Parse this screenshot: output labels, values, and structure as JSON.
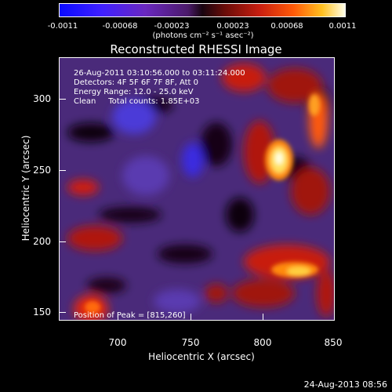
{
  "colorbar": {
    "ticks": [
      "-0.0011",
      "-0.00068",
      "-0.00023",
      "0.00023",
      "0.00068",
      "0.0011"
    ],
    "unit": "(photons cm⁻² s⁻¹ asec⁻²)"
  },
  "title": "Reconstructed RHESSI Image",
  "info": {
    "time": "26-Aug-2011 03:10:56.000 to 03:11:24.000",
    "detectors": "Detectors: 4F 5F 6F 7F 8F, Att 0",
    "energy": "Energy Range: 12.0 - 25.0 keV",
    "clean": "Clean     Total counts: 1.85E+03"
  },
  "peak": "Position of Peak = [815,260]",
  "axes": {
    "xlabel": "Heliocentric X (arcsec)",
    "ylabel": "Heliocentric Y (arcsec)",
    "xticks": [
      "700",
      "750",
      "800",
      "850"
    ],
    "yticks": [
      "300",
      "250",
      "200",
      "150"
    ]
  },
  "footer_date": "24-Aug-2013 08:56"
}
